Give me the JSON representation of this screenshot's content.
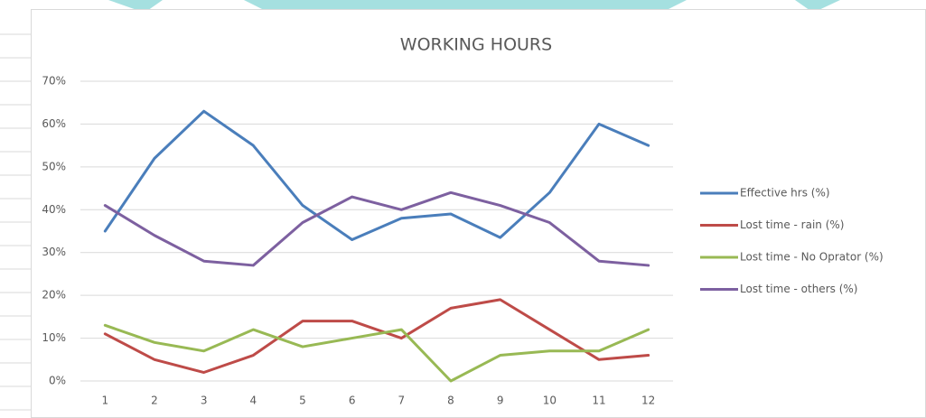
{
  "chart_data": {
    "type": "line",
    "title": "WORKING HOURS",
    "categories": [
      "1",
      "2",
      "3",
      "4",
      "5",
      "6",
      "7",
      "8",
      "9",
      "10",
      "11",
      "12"
    ],
    "series": [
      {
        "name": "Effective hrs (%)",
        "color": "#4a7ebb",
        "values": [
          35,
          52,
          63,
          55,
          41,
          33,
          38,
          39,
          33.5,
          44,
          60,
          55
        ]
      },
      {
        "name": "Lost time - rain (%)",
        "color": "#be4b48",
        "values": [
          11,
          5,
          2,
          6,
          14,
          14,
          10,
          17,
          19,
          12,
          5,
          6
        ]
      },
      {
        "name": "Lost time - No Oprator (%)",
        "color": "#98b954",
        "values": [
          13,
          9,
          7,
          12,
          8,
          10,
          12,
          0,
          6,
          7,
          7,
          12
        ]
      },
      {
        "name": "Lost time - others (%)",
        "color": "#7d60a0",
        "values": [
          41,
          34,
          28,
          27,
          37,
          43,
          40,
          44,
          41,
          37,
          28,
          27
        ]
      }
    ],
    "ylim": [
      0,
      70
    ],
    "yticks": [
      {
        "value": 0,
        "label": "0%"
      },
      {
        "value": 10,
        "label": "10%"
      },
      {
        "value": 20,
        "label": "20%"
      },
      {
        "value": 30,
        "label": "30%"
      },
      {
        "value": 40,
        "label": "40%"
      },
      {
        "value": 50,
        "label": "50%"
      },
      {
        "value": 60,
        "label": "60%"
      },
      {
        "value": 70,
        "label": "70%"
      }
    ],
    "grid": true,
    "legend": "right"
  }
}
